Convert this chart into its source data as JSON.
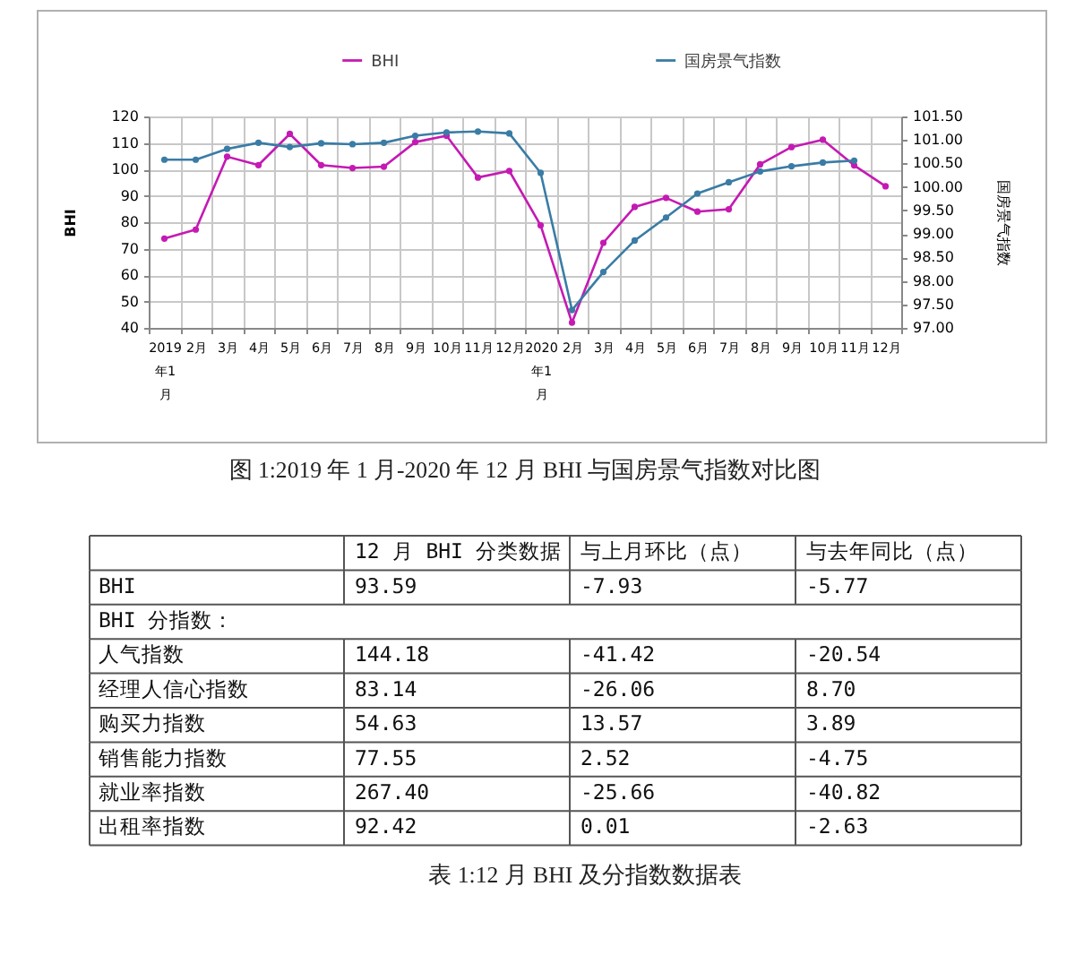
{
  "chart_data": [
    {
      "type": "line",
      "title": "图 1:2019 年 1 月-2020 年 12 月 BHI 与国房景气指数对比图",
      "ylabel": "BHI",
      "y2label": "国房景气指数",
      "categories": [
        "2019年1月",
        "2月",
        "3月",
        "4月",
        "5月",
        "6月",
        "7月",
        "8月",
        "9月",
        "10月",
        "11月",
        "12月",
        "2020年1月",
        "2月",
        "3月",
        "4月",
        "5月",
        "6月",
        "7月",
        "8月",
        "9月",
        "10月",
        "11月",
        "12月"
      ],
      "series": [
        {
          "name": "BHI",
          "color": "#c41ab3",
          "values": [
            73.8,
            77.2,
            104.8,
            101.6,
            113.4,
            101.6,
            100.5,
            101.0,
            110.3,
            112.7,
            96.9,
            99.4,
            78.8,
            42.0,
            72.2,
            85.8,
            89.2,
            84.0,
            84.9,
            101.9,
            108.4,
            111.2,
            101.5,
            93.6
          ]
        },
        {
          "name": "国房景气指数",
          "color": "#3a7ca5",
          "axis": "y2",
          "values": [
            100.58,
            100.58,
            100.81,
            100.94,
            100.85,
            100.93,
            100.91,
            100.94,
            101.09,
            101.16,
            101.18,
            101.14,
            100.3,
            97.38,
            98.19,
            98.86,
            99.35,
            99.86,
            100.1,
            100.33,
            100.44,
            100.52,
            100.56,
            null
          ]
        }
      ],
      "ylim": [
        40,
        120
      ],
      "yticks": [
        40,
        50,
        60,
        70,
        80,
        90,
        100,
        110,
        120
      ],
      "y2lim": [
        97,
        101.5
      ],
      "y2ticks": [
        {
          "value": 97,
          "label": "97.00"
        },
        {
          "value": 97.5,
          "label": "97.50"
        },
        {
          "value": 98,
          "label": "98.00"
        },
        {
          "value": 98.5,
          "label": "98.50"
        },
        {
          "value": 99,
          "label": "99.00"
        },
        {
          "value": 99.5,
          "label": "99.50"
        },
        {
          "value": 100,
          "label": "100.00"
        },
        {
          "value": 100.5,
          "label": "100.50"
        },
        {
          "value": 101,
          "label": "101.00"
        },
        {
          "value": 101.5,
          "label": "101.50"
        }
      ],
      "grid": true,
      "legend": "top",
      "marker": "circle"
    },
    {
      "type": "other",
      "title": "表 1:12 月 BHI 及分指数数据表",
      "annotations": [
        "BHI 分指数："
      ],
      "categories": [
        "BHI",
        "人气指数",
        "经理人信心指数",
        "购买力指数",
        "销售能力指数",
        "就业率指数",
        "出租率指数"
      ],
      "series": [
        {
          "name": "12 月 BHI 分类数据",
          "values": [
            93.59,
            144.18,
            83.14,
            54.63,
            77.55,
            267.4,
            92.42
          ],
          "value_labels": [
            "93.59",
            "144.18",
            "83.14",
            "54.63",
            "77.55",
            "267.40",
            "92.42"
          ]
        },
        {
          "name": "与上月环比（点）",
          "values": [
            -7.93,
            -41.42,
            -26.06,
            13.57,
            2.52,
            -25.66,
            0.01
          ],
          "value_labels": [
            "-7.93",
            "-41.42",
            "-26.06",
            "13.57",
            "2.52",
            "-25.66",
            "0.01"
          ]
        },
        {
          "name": "与去年同比（点）",
          "values": [
            -5.77,
            -20.54,
            8.7,
            3.89,
            -4.75,
            -40.82,
            -2.63
          ],
          "value_labels": [
            "-5.77",
            "-20.54",
            "8.70",
            "3.89",
            "-4.75",
            "-40.82",
            "-2.63"
          ]
        }
      ]
    }
  ]
}
